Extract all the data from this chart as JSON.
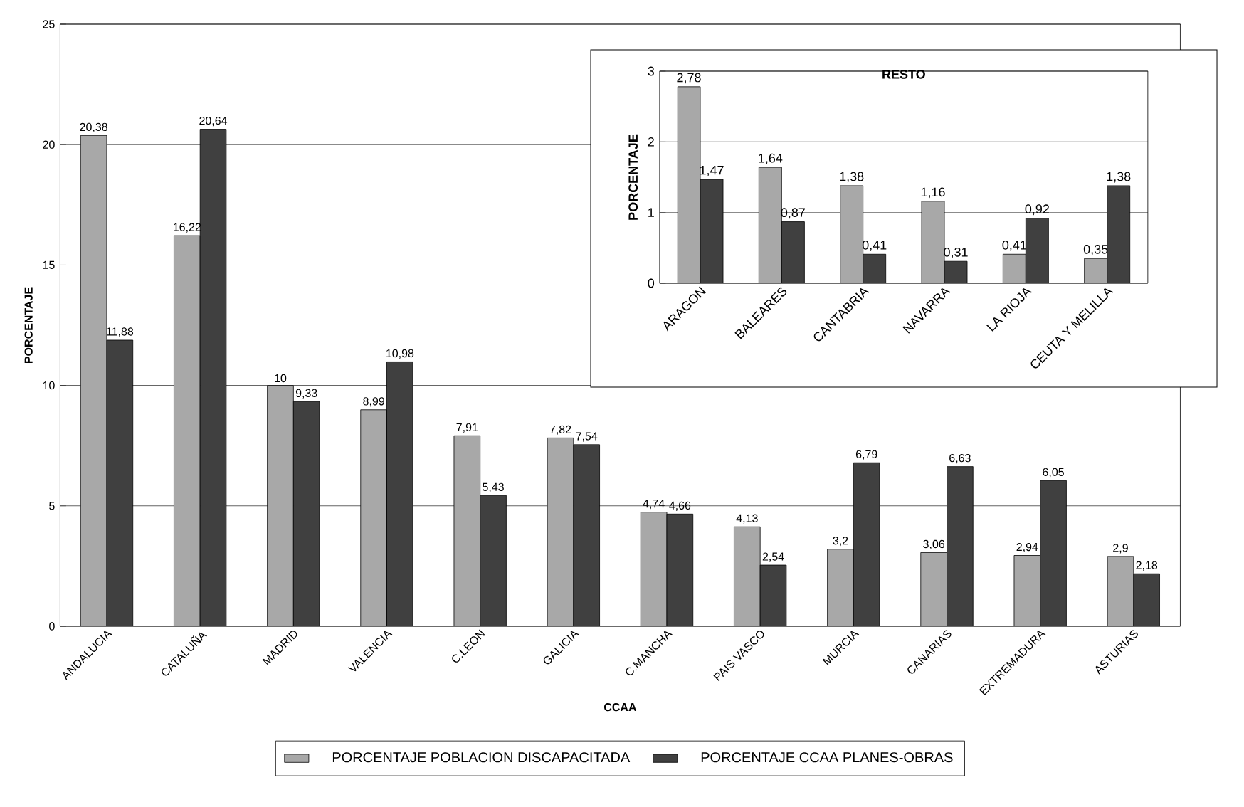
{
  "chart_data": [
    {
      "type": "bar",
      "xlabel": "CCAA",
      "ylabel": "PORCENTAJE",
      "categories": [
        "ANDALUCIA",
        "CATALUÑA",
        "MADRID",
        "VALENCIA",
        "C.LEON",
        "GALICIA",
        "C.MANCHA",
        "PAIS VASCO",
        "MURCIA",
        "CANARIAS",
        "EXTREMADURA",
        "ASTURIAS"
      ],
      "series": [
        {
          "name": "PORCENTAJE POBLACION DISCAPACITADA",
          "color": "#a8a8a8",
          "values": [
            20.38,
            16.22,
            10,
            8.99,
            7.91,
            7.82,
            4.74,
            4.13,
            3.2,
            3.06,
            2.94,
            2.9
          ],
          "value_labels": [
            "20,38",
            "16,22",
            "10",
            "8,99",
            "7,91",
            "7,82",
            "4,74",
            "4,13",
            "3,2",
            "3,06",
            "2,94",
            "2,9"
          ]
        },
        {
          "name": "PORCENTAJE CCAA PLANES-OBRAS",
          "color": "#404040",
          "values": [
            11.88,
            20.64,
            9.33,
            10.98,
            5.43,
            7.54,
            4.66,
            2.54,
            6.79,
            6.63,
            6.05,
            2.18
          ],
          "value_labels": [
            "11,88",
            "20,64",
            "9,33",
            "10,98",
            "5,43",
            "7,54",
            "4,66",
            "2,54",
            "6,79",
            "6,63",
            "6,05",
            "2,18"
          ]
        }
      ],
      "ylim": [
        0,
        25
      ],
      "yticks": [
        0,
        5,
        10,
        15,
        20,
        25
      ],
      "grid": "y",
      "legend": "bottom"
    },
    {
      "type": "bar",
      "title": "RESTO",
      "ylabel": "PORCENTAJE",
      "categories": [
        "ARAGON",
        "BALEARES",
        "CANTABRIA",
        "NAVARRA",
        "LA RIOJA",
        "CEUTA Y MELILLA"
      ],
      "series": [
        {
          "color": "#a8a8a8",
          "values": [
            2.78,
            1.64,
            1.38,
            1.16,
            0.41,
            0.35
          ],
          "value_labels": [
            "2,78",
            "1,64",
            "1,38",
            "1,16",
            "0,41",
            "0,35"
          ]
        },
        {
          "color": "#404040",
          "values": [
            1.47,
            0.87,
            0.41,
            0.31,
            0.92,
            1.38
          ],
          "value_labels": [
            "1,47",
            "0,87",
            "0,41",
            "0,31",
            "0,92",
            "1,38"
          ]
        }
      ],
      "ylim": [
        0,
        3
      ],
      "yticks": [
        0,
        1,
        2,
        3
      ],
      "grid": "y"
    }
  ]
}
